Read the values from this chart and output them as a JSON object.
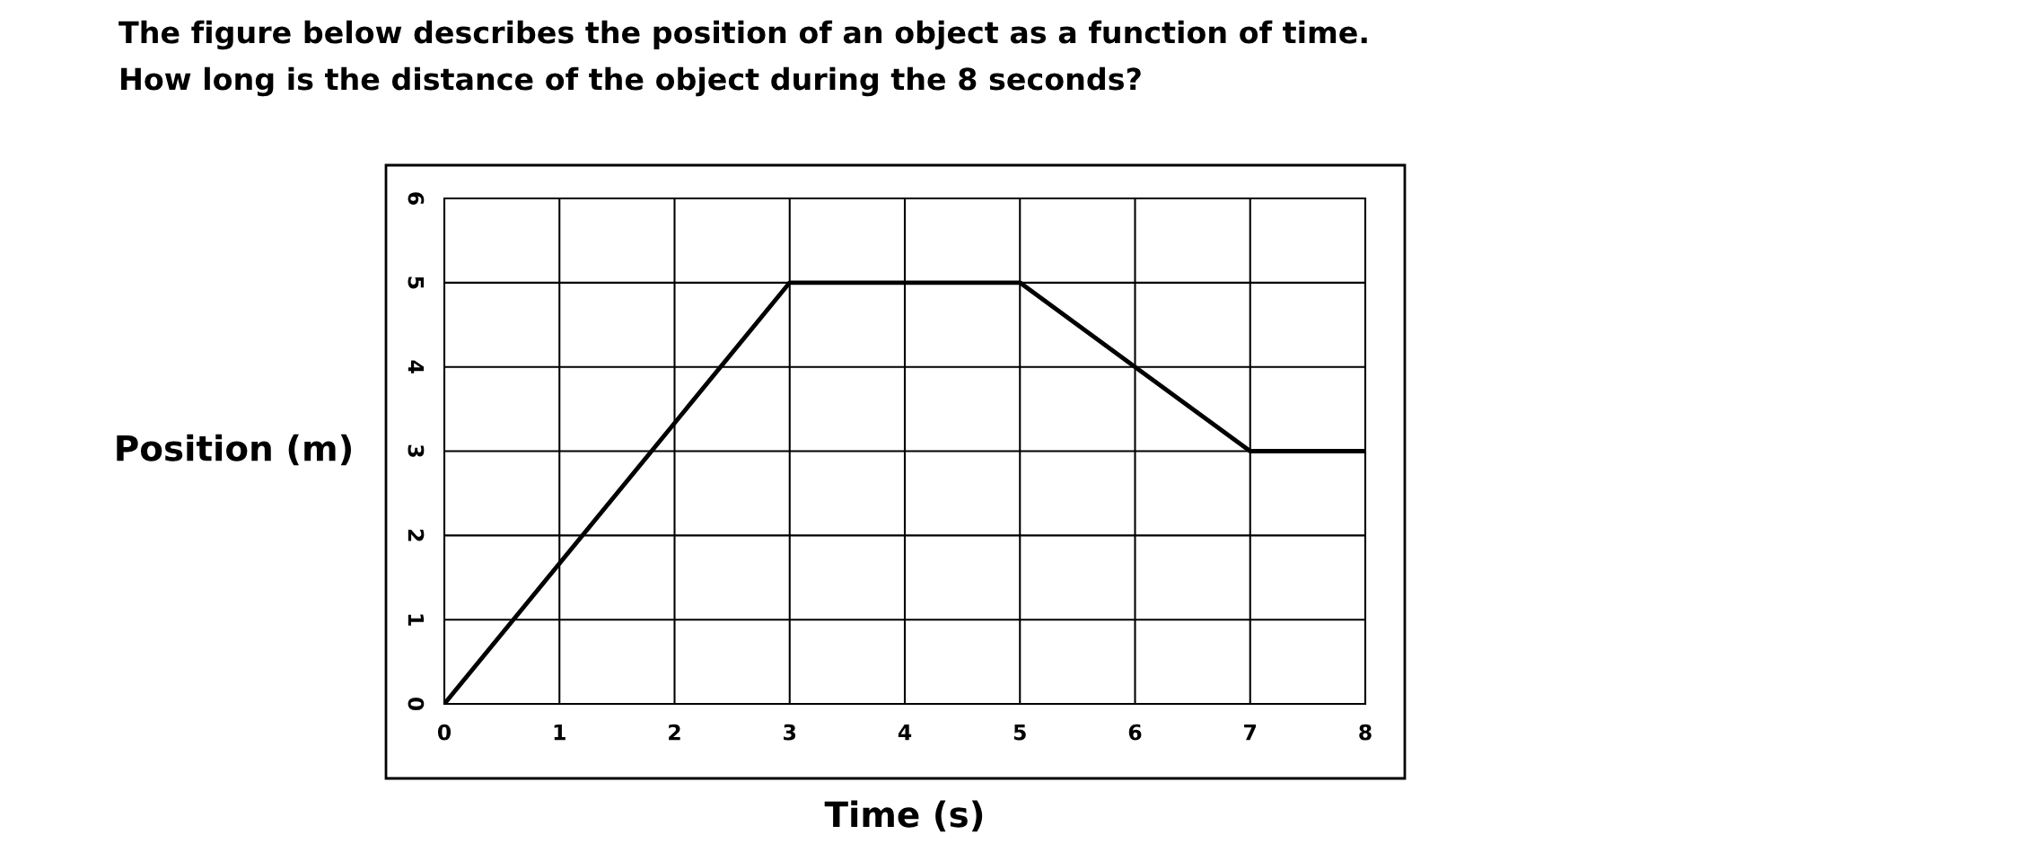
{
  "chart_data": {
    "type": "line",
    "title": "The figure below describes the position of an object as a function of time.",
    "subtitle": "How long is the distance of the object during the 8 seconds?",
    "xlabel": "Time (s)",
    "ylabel": "Position (m)",
    "x": [
      0,
      3,
      5,
      7,
      8
    ],
    "series": [
      {
        "color": "#000000",
        "values": [
          0,
          5,
          5,
          3,
          3
        ]
      }
    ],
    "xlim": [
      0,
      8
    ],
    "xticks": [
      0,
      1,
      2,
      3,
      4,
      5,
      6,
      7,
      8
    ],
    "ylim": [
      0,
      6
    ],
    "yticks": [
      0,
      1,
      2,
      3,
      4,
      5,
      6
    ],
    "grid": true,
    "marker": "none",
    "line_style": "solid"
  }
}
